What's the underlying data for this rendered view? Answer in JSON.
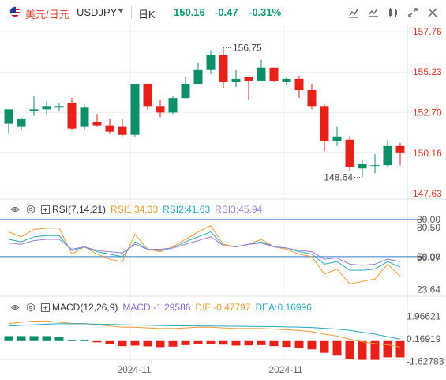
{
  "header": {
    "symbol_cn": "美元/日元",
    "symbol_code": "USDJPY",
    "period": "日K",
    "last_price": "150.16",
    "change": "-0.47",
    "change_pct": "-0.31%"
  },
  "icons": {
    "flag": "us-flag-icon",
    "dropdown": "chevron-down-icon",
    "toolbar": [
      "draw-icon",
      "chart-style-icon",
      "edit-icon",
      "fullscreen-icon",
      "close-icon"
    ],
    "indicator_settings": "gear-icon",
    "indicator_expand": "plus-box-icon",
    "indicator_visibility": "eye-icon"
  },
  "colors": {
    "up": "#0d8f6a",
    "down": "#e8201a",
    "axis_text_red": "#e03b2a",
    "rsi1": "#f39a34",
    "rsi2": "#26a8c4",
    "rsi3": "#9b7fd6",
    "ref_line": "#2d7fc9"
  },
  "price_axis": [
    "157.76",
    "155.23",
    "152.70",
    "150.16",
    "147.63"
  ],
  "annotations": {
    "high": "156.75",
    "low": "148.64"
  },
  "rsi": {
    "label": "RSI(7,14,21)",
    "rsi1": "RSI1:34.33",
    "rsi2": "RSI2:41.63",
    "rsi3": "RSI3:45.94",
    "axis": [
      "80.00",
      "80.50",
      "50.00",
      "50.07",
      "23.64"
    ]
  },
  "macd": {
    "label": "MACD(12,26,9)",
    "macd": "MACD:-1.29586",
    "dif": "DIF:-0.47797",
    "dea": "DEA:0.16996",
    "axis": [
      "1.96621",
      "0.16919",
      "-1.62783"
    ]
  },
  "time_axis": [
    "2024-11",
    "2024-11"
  ],
  "chart_data": {
    "type": "candlestick",
    "ylim": [
      147.63,
      157.76
    ],
    "candles": [
      {
        "o": 152.0,
        "h": 152.8,
        "l": 151.4,
        "c": 152.9
      },
      {
        "o": 151.8,
        "h": 152.4,
        "l": 151.6,
        "c": 152.3
      },
      {
        "o": 152.8,
        "h": 153.7,
        "l": 152.5,
        "c": 152.9
      },
      {
        "o": 152.9,
        "h": 153.4,
        "l": 152.6,
        "c": 153.1
      },
      {
        "o": 153.0,
        "h": 153.3,
        "l": 152.8,
        "c": 153.1
      },
      {
        "o": 153.3,
        "h": 153.6,
        "l": 151.6,
        "c": 151.7
      },
      {
        "o": 151.8,
        "h": 153.2,
        "l": 151.6,
        "c": 153.0
      },
      {
        "o": 152.1,
        "h": 152.6,
        "l": 151.8,
        "c": 151.9
      },
      {
        "o": 151.9,
        "h": 152.3,
        "l": 151.4,
        "c": 151.5
      },
      {
        "o": 151.8,
        "h": 152.3,
        "l": 151.2,
        "c": 151.3
      },
      {
        "o": 151.3,
        "h": 154.5,
        "l": 151.2,
        "c": 154.5
      },
      {
        "o": 154.5,
        "h": 154.5,
        "l": 152.9,
        "c": 153.1
      },
      {
        "o": 153.1,
        "h": 153.5,
        "l": 152.4,
        "c": 152.7
      },
      {
        "o": 152.7,
        "h": 153.7,
        "l": 152.6,
        "c": 153.6
      },
      {
        "o": 153.6,
        "h": 154.9,
        "l": 153.6,
        "c": 154.5
      },
      {
        "o": 154.5,
        "h": 155.8,
        "l": 154.5,
        "c": 155.4
      },
      {
        "o": 155.4,
        "h": 156.6,
        "l": 155.1,
        "c": 156.3
      },
      {
        "o": 156.3,
        "h": 156.75,
        "l": 154.2,
        "c": 154.6
      },
      {
        "o": 154.6,
        "h": 155.4,
        "l": 154.3,
        "c": 154.8
      },
      {
        "o": 154.9,
        "h": 154.9,
        "l": 153.5,
        "c": 154.7
      },
      {
        "o": 154.7,
        "h": 156.0,
        "l": 154.7,
        "c": 155.5
      },
      {
        "o": 155.5,
        "h": 155.5,
        "l": 154.6,
        "c": 154.7
      },
      {
        "o": 154.6,
        "h": 154.9,
        "l": 154.4,
        "c": 154.8
      },
      {
        "o": 154.8,
        "h": 155.0,
        "l": 153.6,
        "c": 154.1
      },
      {
        "o": 154.1,
        "h": 154.5,
        "l": 152.9,
        "c": 153.1
      },
      {
        "o": 153.1,
        "h": 153.2,
        "l": 150.3,
        "c": 150.9
      },
      {
        "o": 150.9,
        "h": 151.8,
        "l": 150.6,
        "c": 151.2
      },
      {
        "o": 151.0,
        "h": 151.2,
        "l": 149.0,
        "c": 149.3
      },
      {
        "o": 149.2,
        "h": 149.7,
        "l": 148.64,
        "c": 149.5
      },
      {
        "o": 149.4,
        "h": 150.1,
        "l": 148.9,
        "c": 149.4
      },
      {
        "o": 149.4,
        "h": 151.0,
        "l": 149.3,
        "c": 150.6
      },
      {
        "o": 150.6,
        "h": 150.8,
        "l": 149.4,
        "c": 150.16
      }
    ],
    "rsi_series": [
      {
        "name": "RSI1",
        "values": [
          70,
          66,
          72,
          73,
          73,
          52,
          58,
          52,
          48,
          46,
          68,
          56,
          54,
          58,
          64,
          70,
          75,
          60,
          58,
          60,
          64,
          58,
          56,
          52,
          50,
          36,
          40,
          28,
          30,
          32,
          44,
          34.33
        ]
      },
      {
        "name": "RSI2",
        "values": [
          64,
          62,
          66,
          67,
          67,
          55,
          58,
          54,
          52,
          50,
          62,
          56,
          55,
          57,
          62,
          66,
          70,
          59,
          58,
          60,
          62,
          58,
          57,
          54,
          52,
          44,
          46,
          39,
          39,
          40,
          46,
          41.63
        ]
      },
      {
        "name": "RSI3",
        "values": [
          61,
          60,
          63,
          64,
          64,
          56,
          58,
          55,
          54,
          53,
          60,
          56,
          56,
          57,
          60,
          63,
          66,
          59,
          58,
          60,
          61,
          58,
          57,
          55,
          54,
          48,
          49,
          44,
          43,
          44,
          48,
          45.94
        ]
      }
    ],
    "macd_series": {
      "dif": [
        1.4,
        1.5,
        1.6,
        1.6,
        1.5,
        1.4,
        1.4,
        1.3,
        1.2,
        1.1,
        1.1,
        1.05,
        1.0,
        1.0,
        1.05,
        1.1,
        1.1,
        1.05,
        1.0,
        1.0,
        1.0,
        0.95,
        0.9,
        0.85,
        0.75,
        0.55,
        0.4,
        0.15,
        -0.05,
        -0.2,
        -0.3,
        -0.48
      ],
      "dea": [
        1.2,
        1.25,
        1.3,
        1.35,
        1.38,
        1.38,
        1.37,
        1.35,
        1.33,
        1.3,
        1.28,
        1.26,
        1.24,
        1.22,
        1.21,
        1.2,
        1.2,
        1.19,
        1.18,
        1.17,
        1.16,
        1.15,
        1.13,
        1.11,
        1.08,
        1.02,
        0.95,
        0.85,
        0.7,
        0.55,
        0.35,
        0.17
      ],
      "hist": [
        0.4,
        0.4,
        0.4,
        0.4,
        0.3,
        0.1,
        0.06,
        -0.1,
        -0.26,
        -0.4,
        -0.36,
        -0.42,
        -0.48,
        -0.44,
        -0.32,
        -0.2,
        -0.2,
        -0.28,
        -0.36,
        -0.34,
        -0.32,
        -0.4,
        -0.46,
        -0.52,
        -0.66,
        -0.94,
        -1.1,
        -1.4,
        -1.5,
        -1.5,
        -1.3,
        -1.3
      ]
    }
  }
}
